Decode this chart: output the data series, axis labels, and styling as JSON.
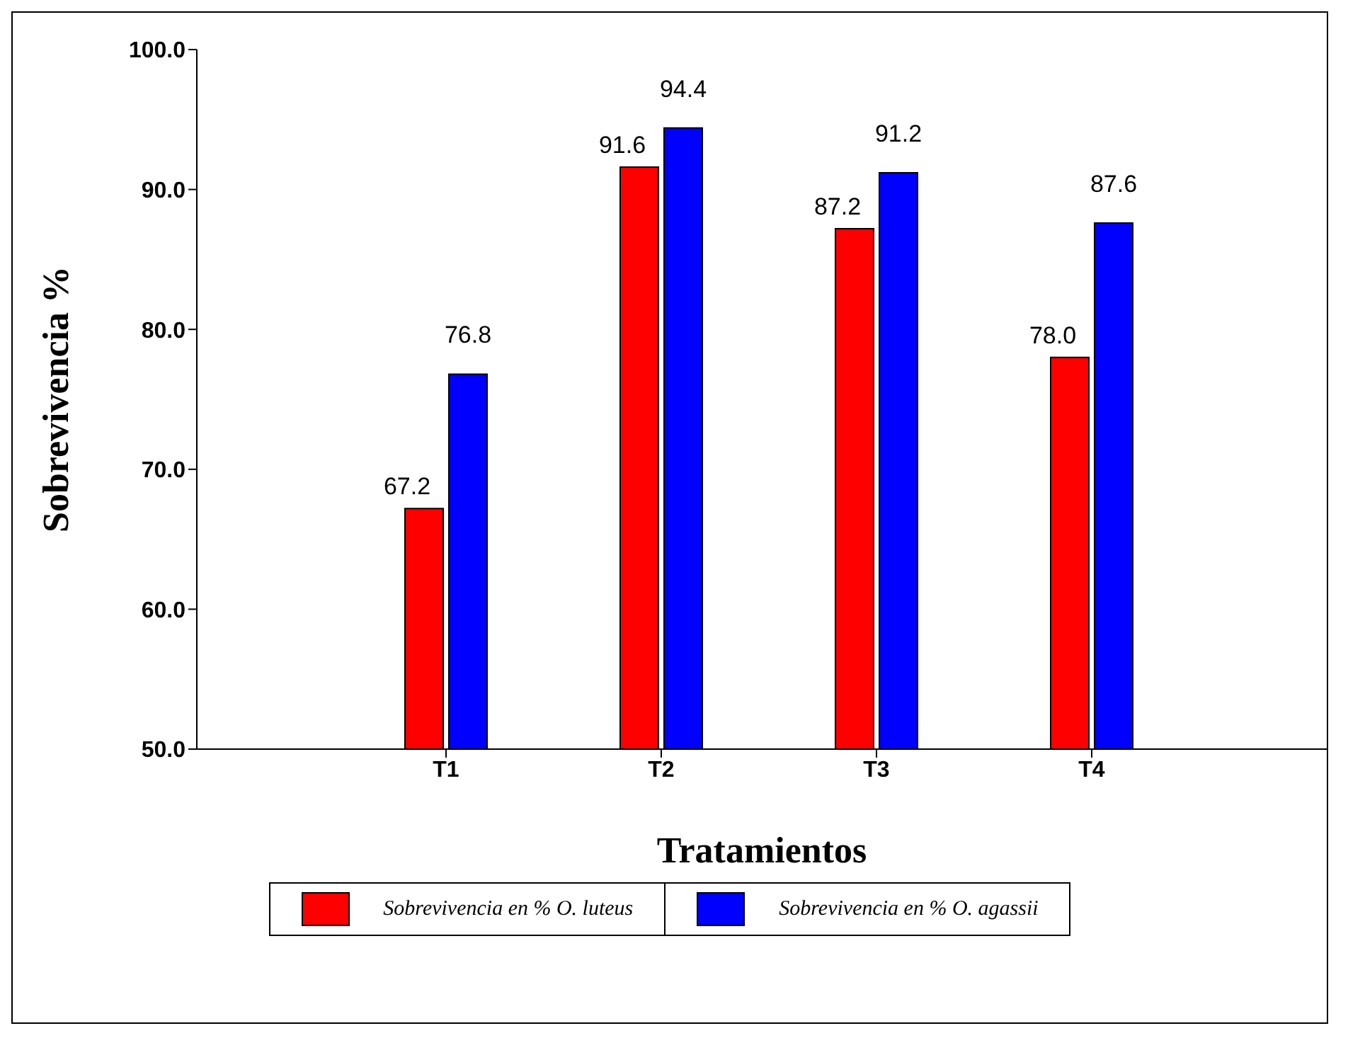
{
  "chart_data": {
    "type": "bar",
    "xlabel": "Tratamientos",
    "ylabel": "Sobrevivencia  %",
    "categories": [
      "T1",
      "T2",
      "T3",
      "T4"
    ],
    "series": [
      {
        "name": "Sobrevivencia en % O. luteus",
        "color": "#ff0000",
        "values": [
          67.2,
          91.6,
          87.2,
          78.0
        ],
        "value_labels": [
          "67.2",
          "91.6",
          "87.2",
          "78.0"
        ]
      },
      {
        "name": "Sobrevivencia en % O. agassii",
        "color": "#0000ff",
        "values": [
          76.8,
          94.4,
          91.2,
          87.6
        ],
        "value_labels": [
          "76.8",
          "94.4",
          "91.2",
          "87.6"
        ]
      }
    ],
    "ylim": [
      50,
      100
    ],
    "yticks": [
      {
        "value": 50,
        "label": "50.0"
      },
      {
        "value": 60,
        "label": "60.0"
      },
      {
        "value": 70,
        "label": "70.0"
      },
      {
        "value": 80,
        "label": "80.0"
      },
      {
        "value": 90,
        "label": "90.0"
      },
      {
        "value": 100,
        "label": "100.0"
      }
    ],
    "grid": false,
    "legend": "bottom"
  }
}
